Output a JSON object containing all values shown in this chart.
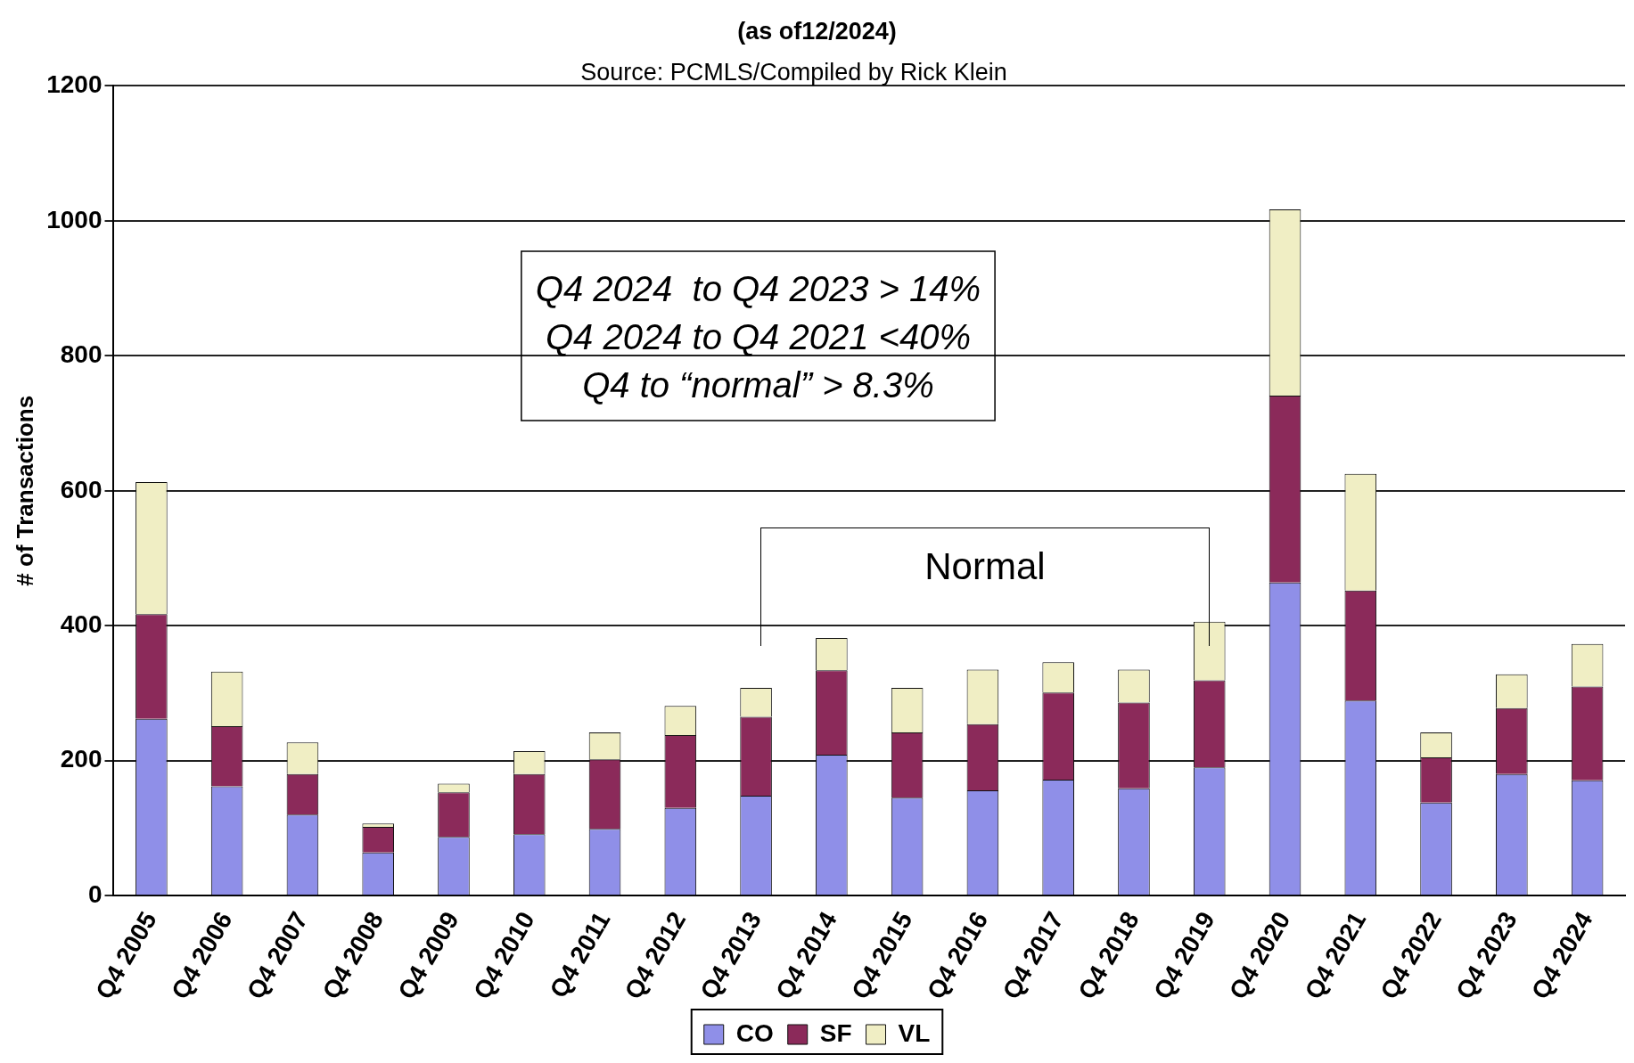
{
  "chart_data": {
    "type": "bar",
    "subtitle": "(as of12/2024)",
    "ylabel": "# of Transactions",
    "annotations": [
      "Source: PCMLS/Compiled by Rick Klein",
      "Q4 2024  to Q4 2023 > 14%",
      "Q4 2024 to Q4 2021 <40%",
      "Q4 to “normal” > 8.3%",
      "Normal"
    ],
    "categories": [
      "Q4 2005",
      "Q4 2006",
      "Q4 2007",
      "Q4 2008",
      "Q4 2009",
      "Q4 2010",
      "Q4 2011",
      "Q4 2012",
      "Q4 2013",
      "Q4 2014",
      "Q4 2015",
      "Q4 2016",
      "Q4 2017",
      "Q4 2018",
      "Q4 2019",
      "Q4 2020",
      "Q4 2021",
      "Q4 2022",
      "Q4 2023",
      "Q4 2024"
    ],
    "series": [
      {
        "name": "CO",
        "color": "#8f8fe8",
        "values": [
          262,
          162,
          120,
          64,
          87,
          91,
          99,
          130,
          148,
          209,
          145,
          156,
          172,
          159,
          190,
          464,
          289,
          138,
          180,
          171
        ]
      },
      {
        "name": "SF",
        "color": "#8b2a5a",
        "values": [
          155,
          89,
          60,
          38,
          66,
          89,
          103,
          108,
          117,
          125,
          97,
          98,
          129,
          127,
          129,
          277,
          163,
          67,
          98,
          139
        ]
      },
      {
        "name": "VL",
        "color": "#f0eec4",
        "values": [
          196,
          81,
          47,
          5,
          13,
          34,
          40,
          43,
          43,
          48,
          66,
          81,
          45,
          49,
          87,
          276,
          173,
          37,
          50,
          63
        ]
      }
    ],
    "stacked": true,
    "ylim": [
      0,
      1200
    ],
    "yticks": [
      0,
      200,
      400,
      600,
      800,
      1000,
      1200
    ],
    "grid": "y",
    "legend": "bottom"
  }
}
